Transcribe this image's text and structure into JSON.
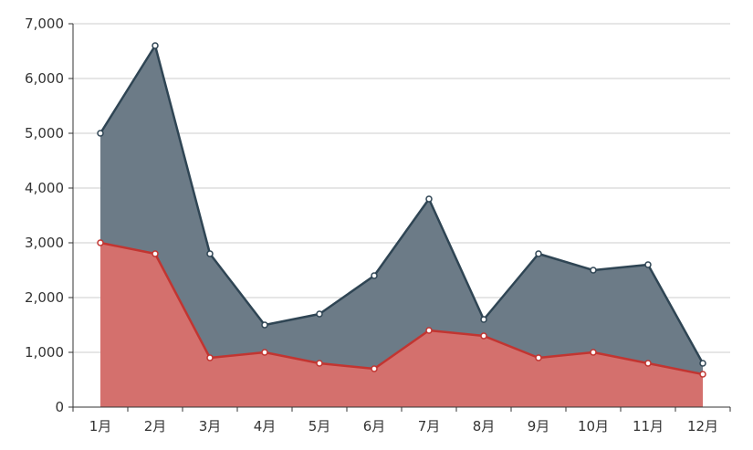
{
  "chart_data": {
    "type": "area",
    "categories": [
      "1月",
      "2月",
      "3月",
      "4月",
      "5月",
      "6月",
      "7月",
      "8月",
      "9月",
      "10月",
      "11月",
      "12月"
    ],
    "series": [
      {
        "values": [
          5000,
          6600,
          2800,
          1500,
          1700,
          2400,
          3800,
          1600,
          2800,
          2500,
          2600,
          800
        ],
        "line_color": "#2f4554",
        "fill_color": "#6c7b87"
      },
      {
        "values": [
          3000,
          2800,
          900,
          1000,
          800,
          700,
          1400,
          1300,
          900,
          1000,
          800,
          600
        ],
        "line_color": "#c23531",
        "fill_color": "#d4706d"
      }
    ],
    "yticks": [
      "0",
      "1,000",
      "2,000",
      "3,000",
      "4,000",
      "5,000",
      "6,000",
      "7,000"
    ],
    "ylim": [
      0,
      7000
    ],
    "ytick_step": 1000,
    "grid": true
  }
}
